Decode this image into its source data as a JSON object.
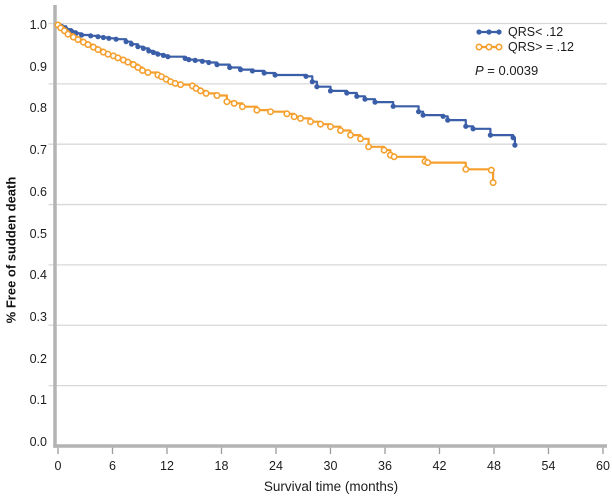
{
  "annotation": {
    "p_symbol": "P",
    "p_rest": " = 0.0039",
    "p_label": "P = 0.0039"
  },
  "chart_data": {
    "type": "line",
    "subtype": "kaplan-meier-step",
    "title": "",
    "xlabel": "Survival time (months)",
    "ylabel": "% Free of sudden death",
    "xlim": [
      0,
      60
    ],
    "ylim": [
      0.0,
      1.0
    ],
    "xticks": [
      0,
      6,
      12,
      18,
      24,
      30,
      36,
      42,
      48,
      54,
      60
    ],
    "yticks": [
      "1.0",
      "0.9",
      "0.8",
      "0.7",
      "0.6",
      "0.5",
      "0.4",
      "0.3",
      "0.2",
      "0.1",
      "0.0"
    ],
    "ytick_values": [
      1.0,
      0.9,
      0.8,
      0.7,
      0.6,
      0.5,
      0.4,
      0.3,
      0.2,
      0.1,
      0.0
    ],
    "grid": "horizontal",
    "legend_position": "top-right",
    "annotation": "P = 0.0039",
    "colors": {
      "axis": "#b3b3b3",
      "grid": "#d8d8d8",
      "text": "#1c1c1c"
    },
    "series": [
      {
        "name": "QRS< .12",
        "color": "#3a5fa8",
        "marker": "filled-circle",
        "points": [
          [
            0,
            1.0
          ],
          [
            0.4,
            0.997
          ],
          [
            0.9,
            0.99
          ],
          [
            1.5,
            0.985
          ],
          [
            2.0,
            0.98
          ],
          [
            2.6,
            0.976
          ],
          [
            3.6,
            0.974
          ],
          [
            4.4,
            0.972
          ],
          [
            5.0,
            0.97
          ],
          [
            5.6,
            0.968
          ],
          [
            6.4,
            0.966
          ],
          [
            7.5,
            0.96
          ],
          [
            8.1,
            0.954
          ],
          [
            8.8,
            0.948
          ],
          [
            9.4,
            0.944
          ],
          [
            10.0,
            0.938
          ],
          [
            10.5,
            0.934
          ],
          [
            11.0,
            0.93
          ],
          [
            11.6,
            0.927
          ],
          [
            12.1,
            0.924
          ],
          [
            14.0,
            0.92
          ],
          [
            14.4,
            0.917
          ],
          [
            15.1,
            0.915
          ],
          [
            15.9,
            0.913
          ],
          [
            16.6,
            0.91
          ],
          [
            17.5,
            0.905
          ],
          [
            18.9,
            0.898
          ],
          [
            20.1,
            0.893
          ],
          [
            21.4,
            0.89
          ],
          [
            22.7,
            0.885
          ],
          [
            23.9,
            0.88
          ],
          [
            27.3,
            0.877
          ],
          [
            28.0,
            0.864
          ],
          [
            28.5,
            0.852
          ],
          [
            30.0,
            0.842
          ],
          [
            31.8,
            0.837
          ],
          [
            32.9,
            0.829
          ],
          [
            33.8,
            0.822
          ],
          [
            34.9,
            0.815
          ],
          [
            36.9,
            0.805
          ],
          [
            39.7,
            0.792
          ],
          [
            40.2,
            0.784
          ],
          [
            42.4,
            0.781
          ],
          [
            42.9,
            0.772
          ],
          [
            44.9,
            0.757
          ],
          [
            45.7,
            0.751
          ],
          [
            47.6,
            0.736
          ],
          [
            50.1,
            0.73
          ],
          [
            50.3,
            0.712
          ]
        ]
      },
      {
        "name": "QRS> = .12",
        "color": "#f5a02e",
        "marker": "open-circle",
        "points": [
          [
            0,
            1.0
          ],
          [
            0.3,
            0.993
          ],
          [
            0.7,
            0.986
          ],
          [
            1.1,
            0.978
          ],
          [
            1.7,
            0.971
          ],
          [
            2.2,
            0.965
          ],
          [
            2.8,
            0.959
          ],
          [
            3.3,
            0.953
          ],
          [
            3.9,
            0.947
          ],
          [
            4.4,
            0.941
          ],
          [
            5.0,
            0.935
          ],
          [
            5.5,
            0.93
          ],
          [
            6.1,
            0.926
          ],
          [
            6.6,
            0.921
          ],
          [
            7.2,
            0.916
          ],
          [
            7.7,
            0.911
          ],
          [
            8.3,
            0.905
          ],
          [
            8.8,
            0.898
          ],
          [
            9.3,
            0.891
          ],
          [
            9.9,
            0.886
          ],
          [
            11.0,
            0.88
          ],
          [
            11.4,
            0.876
          ],
          [
            11.9,
            0.87
          ],
          [
            12.4,
            0.864
          ],
          [
            12.9,
            0.86
          ],
          [
            13.5,
            0.857
          ],
          [
            14.8,
            0.854
          ],
          [
            15.2,
            0.848
          ],
          [
            15.7,
            0.842
          ],
          [
            16.3,
            0.836
          ],
          [
            17.5,
            0.831
          ],
          [
            18.6,
            0.816
          ],
          [
            19.4,
            0.812
          ],
          [
            20.3,
            0.804
          ],
          [
            21.9,
            0.796
          ],
          [
            23.4,
            0.792
          ],
          [
            25.2,
            0.787
          ],
          [
            26.0,
            0.78
          ],
          [
            26.7,
            0.776
          ],
          [
            27.8,
            0.768
          ],
          [
            28.9,
            0.762
          ],
          [
            30.0,
            0.756
          ],
          [
            31.1,
            0.747
          ],
          [
            32.2,
            0.736
          ],
          [
            33.3,
            0.727
          ],
          [
            34.2,
            0.708
          ],
          [
            35.9,
            0.7
          ],
          [
            36.6,
            0.688
          ],
          [
            37.0,
            0.684
          ],
          [
            40.4,
            0.673
          ],
          [
            40.7,
            0.67
          ],
          [
            44.9,
            0.654
          ],
          [
            47.7,
            0.652
          ],
          [
            47.9,
            0.622
          ]
        ]
      }
    ]
  }
}
